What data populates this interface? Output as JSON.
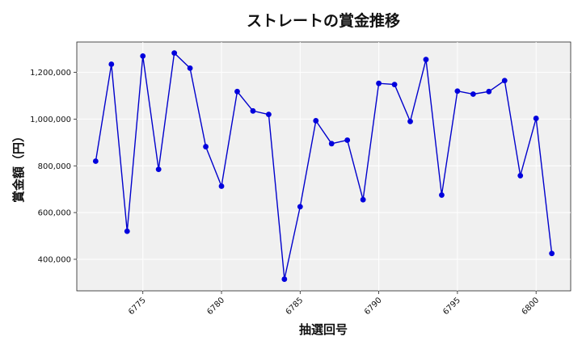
{
  "chart_data": {
    "type": "line",
    "title": "ストレートの賞金推移",
    "xlabel": "抽選回号",
    "ylabel": "賞金額（円）",
    "xlim": [
      6770.8,
      6802.2
    ],
    "ylim": [
      265000,
      1330000
    ],
    "x_ticks": [
      6775,
      6780,
      6785,
      6790,
      6795,
      6800
    ],
    "y_ticks": [
      400000,
      600000,
      800000,
      1000000,
      1200000
    ],
    "y_tick_labels": [
      "400,000",
      "600,000",
      "800,000",
      "1,000,000",
      "1,200,000"
    ],
    "grid": true,
    "colors": {
      "series": "#0000dd",
      "plot_background": "#f0f0f0"
    },
    "series": [
      {
        "x": [
          6772,
          6773,
          6774,
          6775,
          6776,
          6777,
          6778,
          6779,
          6780,
          6781,
          6782,
          6783,
          6784,
          6785,
          6786,
          6787,
          6788,
          6789,
          6790,
          6791,
          6792,
          6793,
          6794,
          6795,
          6796,
          6797,
          6798,
          6799,
          6800,
          6801
        ],
        "y": [
          820000,
          1235000,
          520000,
          1270000,
          785000,
          1283000,
          1218000,
          882000,
          713000,
          1118000,
          1035000,
          1020000,
          315000,
          625000,
          993000,
          895000,
          910000,
          655000,
          1153000,
          1148000,
          990000,
          1255000,
          675000,
          1120000,
          1107000,
          1118000,
          1165000,
          758000,
          1003000,
          425000
        ]
      }
    ]
  }
}
